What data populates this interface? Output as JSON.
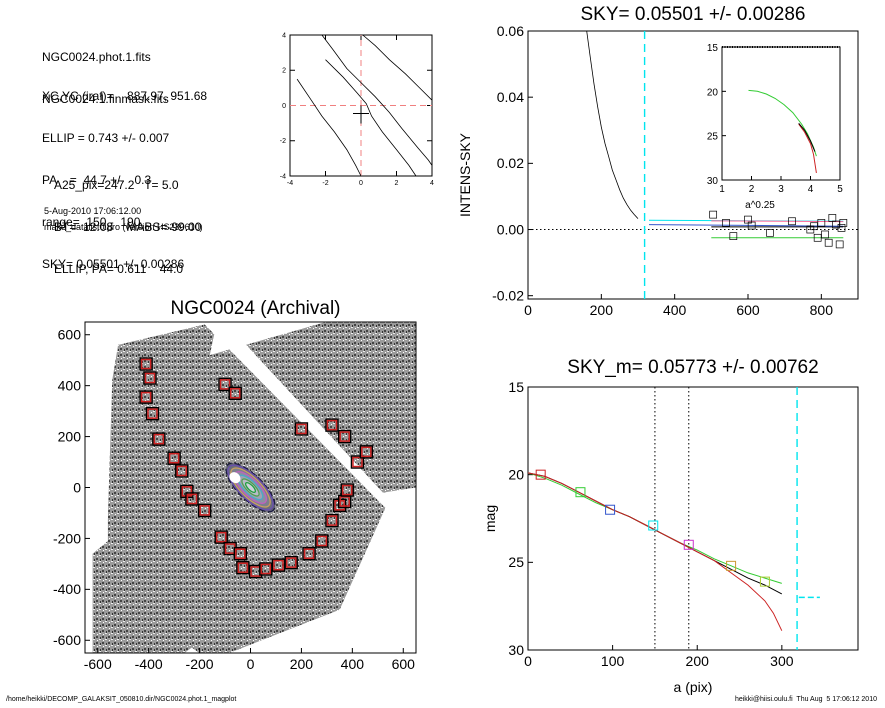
{
  "header": {
    "lines_a": [
      "NGC0024.phot.1.fits",
      "NGC0024.1.finmask.fits"
    ],
    "lines_b": [
      "XC,YC (iraf)=    887.97, 951.68",
      "ELLIP = 0.743 +/- 0.007",
      "PA    =  44.7 +/-   0.3",
      "range=  150.-  190.",
      "SKY= 0.05501 +/- 0.00286"
    ],
    "lines_c": [
      "A25_pix=247.2   T= 5.0",
      "BT=  12.08    MABS=-99.00",
      "ELLIP, PA= 0.611    44.0"
    ],
    "date": "5-Aug-2010 17:06:12.00",
    "program": "make_datalist0.pro (version HS230610)"
  },
  "footer": {
    "path": "/home/heikki/DECOMP_GALAKSIT_050810.dir/NGC0024.phot.1_magplot",
    "user": "heikki@hiisi.oulu.fi  Thu Aug  5 17:06:12 2010"
  },
  "colors": {
    "axis": "#000000",
    "dashed_red": "#f08080",
    "cyan": "#00e5ee",
    "green": "#33cc33",
    "red": "#cc2222",
    "blue": "#3355cc",
    "pink": "#ff6699",
    "orange": "#cc9933",
    "magenta": "#cc33cc",
    "yellowgreen": "#aacc33"
  },
  "chart_data": [
    {
      "id": "contour",
      "type": "line",
      "title": "",
      "xlim": [
        -4,
        4
      ],
      "ylim": [
        -4,
        4
      ],
      "xticks": [
        "-4",
        "-2",
        "0",
        "2",
        "4"
      ],
      "yticks": [
        "-4",
        "-2",
        "0",
        "2",
        "4"
      ],
      "crosshair": [
        0.0,
        0.0
      ],
      "contours": [
        [
          [
            -2.2,
            4
          ],
          [
            -1.6,
            3.2
          ],
          [
            -0.8,
            2.1
          ],
          [
            0,
            1.3
          ],
          [
            0.8,
            0.5
          ],
          [
            1.6,
            -0.4
          ],
          [
            2.3,
            -1.3
          ],
          [
            3.2,
            -2.4
          ],
          [
            3.8,
            -3.1
          ],
          [
            4,
            -3.4
          ]
        ],
        [
          [
            -3.6,
            1.5
          ],
          [
            -2.8,
            0.3
          ],
          [
            -2.2,
            -0.6
          ],
          [
            -1.5,
            -1.5
          ],
          [
            -0.8,
            -2.5
          ],
          [
            -0.3,
            -3.4
          ],
          [
            0,
            -4
          ]
        ],
        [
          [
            0.1,
            4
          ],
          [
            0.8,
            3.4
          ],
          [
            1.6,
            2.6
          ],
          [
            2.5,
            1.8
          ],
          [
            3.3,
            1.0
          ],
          [
            4,
            0.3
          ]
        ],
        [
          [
            -2.0,
            2.6
          ],
          [
            -1.0,
            1.6
          ],
          [
            -0.2,
            0.7
          ],
          [
            0.3,
            0.1
          ],
          [
            0.6,
            -0.6
          ],
          [
            1.2,
            -1.5
          ],
          [
            2.0,
            -2.5
          ],
          [
            2.7,
            -3.4
          ],
          [
            3.1,
            -4
          ]
        ]
      ]
    },
    {
      "id": "sky",
      "type": "line",
      "title": "SKY= 0.05501 +/- 0.00286",
      "xlabel": "",
      "ylabel": "INTENS-SKY",
      "xlim": [
        0,
        900
      ],
      "ylim": [
        -0.021,
        0.06
      ],
      "xticks": [
        "0",
        "200",
        "400",
        "600",
        "800"
      ],
      "yticks": [
        "-0.02",
        "0.00",
        "0.02",
        "0.04",
        "0.06"
      ],
      "profile": {
        "x": [
          160,
          170,
          180,
          190,
          200,
          210,
          220,
          230,
          240,
          250,
          260,
          270,
          280,
          290,
          300
        ],
        "y": [
          0.06,
          0.052,
          0.044,
          0.037,
          0.031,
          0.026,
          0.022,
          0.018,
          0.015,
          0.012,
          0.0095,
          0.0075,
          0.0058,
          0.0045,
          0.0033
        ]
      },
      "vline": 318,
      "sky_lines": [
        {
          "x": [
            330,
            860
          ],
          "y": [
            0.0028,
            0.0025
          ],
          "color": "cyan"
        },
        {
          "x": [
            500,
            860
          ],
          "y": [
            0.0026,
            0.0024
          ],
          "color": "pink"
        },
        {
          "x": [
            500,
            860
          ],
          "y": [
            0.0008,
            0.0008
          ],
          "color": "black"
        },
        {
          "x": [
            500,
            860
          ],
          "y": [
            -0.0025,
            -0.0025
          ],
          "color": "green"
        },
        {
          "x": [
            330,
            860
          ],
          "y": [
            0.0015,
            0.001
          ],
          "color": "blue"
        }
      ],
      "squares": {
        "x": [
          505,
          540,
          600,
          660,
          720,
          780,
          800,
          810,
          830,
          850,
          855,
          860,
          820,
          840,
          790,
          770,
          610,
          560
        ],
        "y": [
          0.0045,
          0.002,
          0.003,
          -0.001,
          0.0025,
          0.001,
          0.002,
          -0.0015,
          0.0035,
          -0.0045,
          0.0005,
          0.002,
          -0.004,
          0.0015,
          -0.0025,
          0.0,
          0.0012,
          -0.002
        ]
      },
      "inset": {
        "xlim": [
          1,
          5
        ],
        "ylim": [
          30,
          15
        ],
        "xlabel": "a^0.25",
        "xticks": [
          "1",
          "2",
          "3",
          "4",
          "5"
        ],
        "yticks": [
          "15",
          "20",
          "25",
          "30"
        ],
        "series": [
          {
            "color": "green",
            "x": [
              1.9,
              2.2,
              2.5,
              2.8,
              3.1,
              3.4,
              3.7,
              3.9,
              4.1,
              4.2
            ],
            "y": [
              19.9,
              20.0,
              20.3,
              20.8,
              21.5,
              22.4,
              23.7,
              24.8,
              26.3,
              27.3
            ]
          },
          {
            "color": "red",
            "x": [
              3.6,
              3.8,
              4.0,
              4.1,
              4.2
            ],
            "y": [
              23.7,
              24.6,
              25.9,
              27.1,
              29.2
            ]
          },
          {
            "color": "black",
            "x": [
              3.6,
              3.8,
              4.0,
              4.15
            ],
            "y": [
              23.6,
              24.4,
              25.6,
              26.8
            ]
          }
        ]
      }
    },
    {
      "id": "image",
      "type": "scatter",
      "title": "NGC0024 (Archival)",
      "xlim": [
        -650,
        650
      ],
      "ylim": [
        -650,
        650
      ],
      "xticks": [
        "-600",
        "-400",
        "-200",
        "0",
        "200",
        "400",
        "600"
      ],
      "yticks": [
        "-600",
        "-400",
        "-200",
        "0",
        "200",
        "400",
        "600"
      ],
      "galaxy": {
        "cx": 0,
        "cy": 0,
        "pa_deg": 44.7,
        "ellip": 0.743,
        "a_outer": 230
      },
      "boxes": {
        "x": [
          -410,
          -395,
          -410,
          -385,
          -360,
          -300,
          -270,
          -250,
          -230,
          -180,
          -115,
          -80,
          -40,
          -30,
          20,
          60,
          110,
          160,
          230,
          280,
          320,
          350,
          370,
          380,
          420,
          455,
          370,
          320,
          200,
          -100,
          -60
        ],
        "y": [
          485,
          430,
          355,
          290,
          190,
          115,
          65,
          -15,
          -45,
          -90,
          -195,
          -240,
          -260,
          -315,
          -330,
          -320,
          -305,
          -295,
          -260,
          -210,
          -130,
          -70,
          -55,
          -10,
          100,
          140,
          200,
          245,
          230,
          405,
          370
        ]
      }
    },
    {
      "id": "mag",
      "type": "line",
      "title": "SKY_m=  0.05773 +/- 0.00762",
      "xlabel": "a (pix)",
      "ylabel": "mag",
      "xlim": [
        0,
        390
      ],
      "ylim": [
        30,
        15
      ],
      "xticks": [
        "0",
        "100",
        "200",
        "300"
      ],
      "yticks": [
        "15",
        "20",
        "25",
        "30"
      ],
      "vlines_dotted": [
        150,
        190
      ],
      "vline_dashed": 318,
      "sky_marker": {
        "x": [
          320,
          345
        ],
        "y": [
          27.0,
          27.0
        ]
      },
      "series": [
        {
          "color": "green",
          "x": [
            0,
            20,
            40,
            60,
            80,
            100,
            120,
            140,
            160,
            180,
            200,
            220,
            240,
            260,
            280,
            300
          ],
          "y": [
            19.9,
            20.2,
            20.6,
            21.1,
            21.6,
            22.0,
            22.4,
            22.9,
            23.4,
            23.9,
            24.3,
            24.8,
            25.2,
            25.6,
            25.9,
            26.2
          ]
        },
        {
          "color": "black",
          "x": [
            0,
            20,
            40,
            60,
            80,
            100,
            120,
            140,
            160,
            180,
            200,
            220,
            240,
            260,
            280,
            300
          ],
          "y": [
            19.9,
            20.1,
            20.5,
            21.0,
            21.5,
            22.0,
            22.4,
            22.9,
            23.4,
            23.9,
            24.4,
            24.9,
            25.4,
            25.9,
            26.3,
            26.8
          ]
        },
        {
          "color": "red",
          "x": [
            0,
            20,
            40,
            60,
            80,
            100,
            120,
            140,
            160,
            180,
            200,
            220,
            240,
            260,
            280,
            290,
            300
          ],
          "y": [
            19.9,
            20.1,
            20.5,
            21.0,
            21.5,
            22.0,
            22.4,
            22.9,
            23.4,
            23.9,
            24.4,
            24.9,
            25.6,
            26.3,
            27.2,
            27.9,
            28.9
          ]
        }
      ],
      "squares": [
        {
          "x": 15,
          "y": 20.0,
          "color": "red"
        },
        {
          "x": 62,
          "y": 21.0,
          "color": "green"
        },
        {
          "x": 97,
          "y": 22.0,
          "color": "blue"
        },
        {
          "x": 148,
          "y": 22.9,
          "color": "cyan"
        },
        {
          "x": 190,
          "y": 24.0,
          "color": "magenta"
        },
        {
          "x": 240,
          "y": 25.2,
          "color": "orange"
        },
        {
          "x": 280,
          "y": 26.1,
          "color": "yellowgreen"
        }
      ]
    }
  ]
}
